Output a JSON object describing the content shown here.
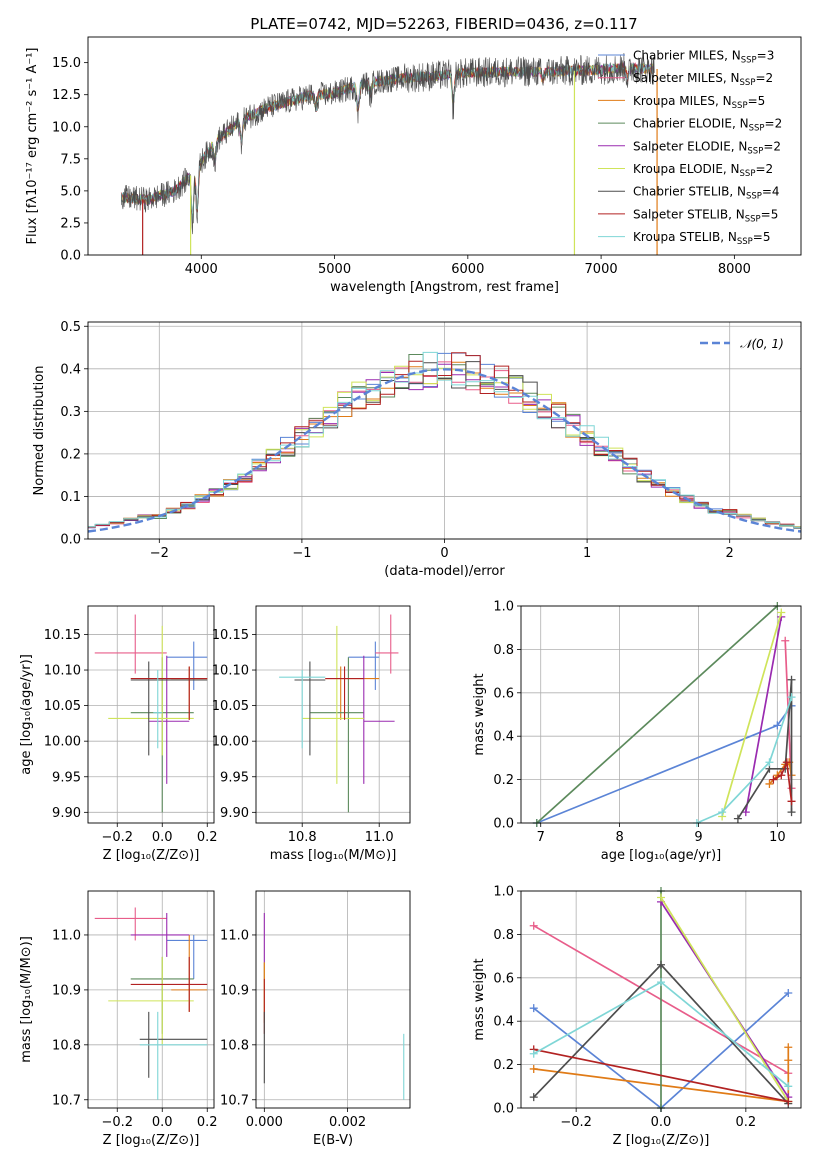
{
  "figure_title": "PLATE=0742, MJD=52263, FIBERID=0436, z=0.117",
  "colors": {
    "chabrier_miles": "#5b84d6",
    "salpeter_miles": "#e85d8a",
    "kroupa_miles": "#e07b17",
    "chabrier_elodie": "#5c8a5c",
    "salpeter_elodie": "#9a2bb0",
    "kroupa_elodie": "#cfe45a",
    "chabrier_stelib": "#4d4d4d",
    "salpeter_stelib": "#b22222",
    "kroupa_stelib": "#7fd6d6"
  },
  "chart_data": [
    {
      "id": "spectrum",
      "type": "line",
      "xlabel": "wavelength [Angstrom, rest frame]",
      "ylabel": "Flux [fλ10⁻¹⁷ erg cm⁻² s⁻¹ A⁻¹]",
      "xlim": [
        3150,
        8500
      ],
      "ylim": [
        0,
        17
      ],
      "xticks": [
        "4000",
        "5000",
        "6000",
        "7000",
        "8000"
      ],
      "xtick_values": [
        4000,
        5000,
        6000,
        7000,
        8000
      ],
      "yticks": [
        "0.0",
        "2.5",
        "5.0",
        "7.5",
        "10.0",
        "12.5",
        "15.0"
      ],
      "ytick_values": [
        0,
        2.5,
        5,
        7.5,
        10,
        12.5,
        15
      ],
      "continuum": {
        "x": [
          3400,
          3600,
          3800,
          3950,
          4100,
          4300,
          4500,
          4800,
          5000,
          5200,
          5500,
          5800,
          6000,
          6300,
          6600,
          6900,
          7200,
          7400
        ],
        "y": [
          4.5,
          4.3,
          5.0,
          6.5,
          8.8,
          10.5,
          11.5,
          12.4,
          12.6,
          13.3,
          13.8,
          14.0,
          14.2,
          14.3,
          14.3,
          14.4,
          14.6,
          14.5
        ]
      },
      "legend_position": "right",
      "series": [
        {
          "name": "Chabrier MILES, N",
          "sub": "SSP",
          "suffix": "=3",
          "color_key": "chabrier_miles"
        },
        {
          "name": "Salpeter MILES, N",
          "sub": "SSP",
          "suffix": "=2",
          "color_key": "salpeter_miles"
        },
        {
          "name": "Kroupa MILES, N",
          "sub": "SSP",
          "suffix": "=5",
          "color_key": "kroupa_miles"
        },
        {
          "name": "Chabrier ELODIE, N",
          "sub": "SSP",
          "suffix": "=2",
          "color_key": "chabrier_elodie"
        },
        {
          "name": "Salpeter ELODIE, N",
          "sub": "SSP",
          "suffix": "=2",
          "color_key": "salpeter_elodie"
        },
        {
          "name": "Kroupa ELODIE, N",
          "sub": "SSP",
          "suffix": "=2",
          "color_key": "kroupa_elodie"
        },
        {
          "name": "Chabrier STELIB, N",
          "sub": "SSP",
          "suffix": "=4",
          "color_key": "chabrier_stelib"
        },
        {
          "name": "Salpeter STELIB, N",
          "sub": "SSP",
          "suffix": "=5",
          "color_key": "salpeter_stelib"
        },
        {
          "name": "Kroupa STELIB, N",
          "sub": "SSP",
          "suffix": "=5",
          "color_key": "kroupa_stelib"
        }
      ]
    },
    {
      "id": "residuals",
      "type": "histogram",
      "xlabel": "(data-model)/error",
      "ylabel": "Normed distribution",
      "xlim": [
        -2.5,
        2.5
      ],
      "ylim": [
        0,
        0.51
      ],
      "xticks": [
        "−2",
        "−1",
        "0",
        "1",
        "2"
      ],
      "xtick_values": [
        -2,
        -1,
        0,
        1,
        2
      ],
      "yticks": [
        "0.0",
        "0.1",
        "0.2",
        "0.3",
        "0.4",
        "0.5"
      ],
      "ytick_values": [
        0,
        0.1,
        0.2,
        0.3,
        0.4,
        0.5
      ],
      "grid": true,
      "bin_width": 0.1,
      "legend": {
        "label": "𝒩(0, 1)",
        "color": "#5b84d6",
        "style": "dashed",
        "position": "top-right"
      }
    },
    {
      "id": "age_vs_Z",
      "type": "errorbar",
      "xlabel": "Z [log₁₀(Z/Z⊙)]",
      "ylabel": "age  [log₁₀(age/yr)]",
      "xlim": [
        -0.33,
        0.23
      ],
      "ylim": [
        9.885,
        10.19
      ],
      "xticks": [
        "−0.2",
        "0.0",
        "0.2"
      ],
      "xtick_values": [
        -0.2,
        0,
        0.2
      ],
      "yticks": [
        "9.90",
        "9.95",
        "10.00",
        "10.05",
        "10.10",
        "10.15"
      ],
      "ytick_values": [
        9.9,
        9.95,
        10.0,
        10.05,
        10.1,
        10.15
      ],
      "grid": true,
      "points": [
        {
          "color_key": "chabrier_miles",
          "x": 0.14,
          "y": 10.118,
          "x0": 0.02,
          "x1": 0.2,
          "y0": 10.072,
          "y1": 10.14
        },
        {
          "color_key": "salpeter_miles",
          "x": -0.12,
          "y": 10.124,
          "x0": -0.3,
          "x1": 0.02,
          "y0": 10.095,
          "y1": 10.178
        },
        {
          "color_key": "kroupa_miles",
          "x": 0.12,
          "y": 10.088,
          "x0": 0.04,
          "x1": 0.2,
          "y0": 10.03,
          "y1": 10.105
        },
        {
          "color_key": "chabrier_elodie",
          "x": 0.0,
          "y": 10.04,
          "x0": -0.14,
          "x1": 0.14,
          "y0": 9.9,
          "y1": 10.118
        },
        {
          "color_key": "salpeter_elodie",
          "x": 0.02,
          "y": 10.028,
          "x0": -0.06,
          "x1": 0.12,
          "y0": 9.94,
          "y1": 10.12
        },
        {
          "color_key": "kroupa_elodie",
          "x": 0.0,
          "y": 10.032,
          "x0": -0.24,
          "x1": 0.14,
          "y0": 9.98,
          "y1": 10.162
        },
        {
          "color_key": "chabrier_stelib",
          "x": -0.06,
          "y": 10.086,
          "x0": -0.14,
          "x1": 0.2,
          "y0": 9.98,
          "y1": 10.112
        },
        {
          "color_key": "salpeter_stelib",
          "x": 0.12,
          "y": 10.088,
          "x0": -0.14,
          "x1": 0.2,
          "y0": 10.03,
          "y1": 10.105
        },
        {
          "color_key": "kroupa_stelib",
          "x": -0.02,
          "y": 10.04,
          "x0": -0.04,
          "x1": 0.0,
          "y0": 9.99,
          "y1": 10.1
        }
      ]
    },
    {
      "id": "age_vs_mass",
      "type": "errorbar",
      "xlabel": "mass [log₁₀(M/M⊙)]",
      "ylabel": "",
      "xlim": [
        10.68,
        11.08
      ],
      "ylim": [
        9.885,
        10.19
      ],
      "xticks": [
        "10.8",
        "11.0"
      ],
      "xtick_values": [
        10.8,
        11.0
      ],
      "yticks": [
        "9.90",
        "9.95",
        "10.00",
        "10.05",
        "10.10",
        "10.15"
      ],
      "ytick_values": [
        9.9,
        9.95,
        10.0,
        10.05,
        10.1,
        10.15
      ],
      "grid": true,
      "points": [
        {
          "color_key": "chabrier_miles",
          "x": 10.99,
          "y": 10.118,
          "x0": 10.92,
          "x1": 11.0,
          "y0": 10.072,
          "y1": 10.14
        },
        {
          "color_key": "salpeter_miles",
          "x": 11.03,
          "y": 10.124,
          "x0": 10.99,
          "x1": 11.05,
          "y0": 10.095,
          "y1": 10.178
        },
        {
          "color_key": "kroupa_miles",
          "x": 10.9,
          "y": 10.088,
          "x0": 10.86,
          "x1": 11.0,
          "y0": 10.03,
          "y1": 10.105
        },
        {
          "color_key": "chabrier_elodie",
          "x": 10.92,
          "y": 10.04,
          "x0": 10.82,
          "x1": 10.96,
          "y0": 9.9,
          "y1": 10.118
        },
        {
          "color_key": "salpeter_elodie",
          "x": 10.96,
          "y": 10.028,
          "x0": 10.96,
          "x1": 11.04,
          "y0": 9.94,
          "y1": 10.12
        },
        {
          "color_key": "kroupa_elodie",
          "x": 10.89,
          "y": 10.032,
          "x0": 10.8,
          "x1": 10.96,
          "y0": 9.94,
          "y1": 10.162
        },
        {
          "color_key": "chabrier_stelib",
          "x": 10.82,
          "y": 10.086,
          "x0": 10.78,
          "x1": 10.86,
          "y0": 9.98,
          "y1": 10.112
        },
        {
          "color_key": "salpeter_stelib",
          "x": 10.91,
          "y": 10.088,
          "x0": 10.86,
          "x1": 10.96,
          "y0": 10.03,
          "y1": 10.105
        },
        {
          "color_key": "kroupa_stelib",
          "x": 10.8,
          "y": 10.09,
          "x0": 10.74,
          "x1": 10.86,
          "y0": 9.99,
          "y1": 10.1
        }
      ]
    },
    {
      "id": "weight_vs_age",
      "type": "line",
      "xlabel": "age  [log₁₀(age/yr)]",
      "ylabel": "mass weight",
      "xlim": [
        6.75,
        10.3
      ],
      "ylim": [
        0,
        1
      ],
      "xticks": [
        "7",
        "8",
        "9",
        "10"
      ],
      "xtick_values": [
        7,
        8,
        9,
        10
      ],
      "yticks": [
        "0.0",
        "0.2",
        "0.4",
        "0.6",
        "0.8",
        "1.0"
      ],
      "ytick_values": [
        0,
        0.2,
        0.4,
        0.6,
        0.8,
        1.0
      ],
      "grid": true,
      "series": [
        {
          "color_key": "chabrier_miles",
          "x": [
            6.95,
            10.0,
            10.18
          ],
          "y": [
            0.0,
            0.45,
            0.54
          ]
        },
        {
          "color_key": "salpeter_miles",
          "x": [
            10.1,
            10.18
          ],
          "y": [
            0.84,
            0.16
          ]
        },
        {
          "color_key": "kroupa_miles",
          "x": [
            9.9,
            10.0,
            10.1,
            10.15,
            10.18
          ],
          "y": [
            0.18,
            0.22,
            0.27,
            0.28,
            0.22
          ]
        },
        {
          "color_key": "chabrier_elodie",
          "x": [
            6.95,
            10.0
          ],
          "y": [
            0.0,
            1.0
          ]
        },
        {
          "color_key": "salpeter_elodie",
          "x": [
            9.6,
            10.05
          ],
          "y": [
            0.05,
            0.95
          ]
        },
        {
          "color_key": "kroupa_elodie",
          "x": [
            9.3,
            10.05
          ],
          "y": [
            0.03,
            0.97
          ]
        },
        {
          "color_key": "chabrier_stelib",
          "x": [
            9.5,
            9.9,
            10.1,
            10.18,
            10.18
          ],
          "y": [
            0.02,
            0.25,
            0.25,
            0.66,
            0.05
          ]
        },
        {
          "color_key": "salpeter_stelib",
          "x": [
            9.95,
            10.05,
            10.12,
            10.18
          ],
          "y": [
            0.2,
            0.22,
            0.28,
            0.1
          ]
        },
        {
          "color_key": "kroupa_stelib",
          "x": [
            8.98,
            9.3,
            9.9,
            10.18
          ],
          "y": [
            0.0,
            0.05,
            0.28,
            0.58
          ]
        }
      ]
    },
    {
      "id": "mass_vs_Z",
      "type": "errorbar",
      "xlabel": "Z [log₁₀(Z/Z⊙)]",
      "ylabel": "mass [log₁₀(M/M⊙)]",
      "xlim": [
        -0.33,
        0.23
      ],
      "ylim": [
        10.685,
        11.08
      ],
      "xticks": [
        "−0.2",
        "0.0",
        "0.2"
      ],
      "xtick_values": [
        -0.2,
        0,
        0.2
      ],
      "yticks": [
        "10.7",
        "10.8",
        "10.9",
        "11.0"
      ],
      "ytick_values": [
        10.7,
        10.8,
        10.9,
        11.0
      ],
      "grid": true,
      "points": [
        {
          "color_key": "chabrier_miles",
          "x": 0.14,
          "y": 10.99,
          "x0": 0.02,
          "x1": 0.2,
          "y0": 10.92,
          "y1": 11.0
        },
        {
          "color_key": "salpeter_miles",
          "x": -0.12,
          "y": 11.03,
          "x0": -0.3,
          "x1": 0.02,
          "y0": 10.99,
          "y1": 11.05
        },
        {
          "color_key": "kroupa_miles",
          "x": 0.12,
          "y": 10.9,
          "x0": 0.04,
          "x1": 0.2,
          "y0": 10.86,
          "y1": 11.0
        },
        {
          "color_key": "chabrier_elodie",
          "x": 0.0,
          "y": 10.92,
          "x0": -0.14,
          "x1": 0.14,
          "y0": 10.82,
          "y1": 10.96
        },
        {
          "color_key": "salpeter_elodie",
          "x": 0.02,
          "y": 11.0,
          "x0": -0.14,
          "x1": 0.12,
          "y0": 10.96,
          "y1": 11.04
        },
        {
          "color_key": "kroupa_elodie",
          "x": 0.0,
          "y": 10.88,
          "x0": -0.24,
          "x1": 0.14,
          "y0": 10.8,
          "y1": 10.96
        },
        {
          "color_key": "chabrier_stelib",
          "x": -0.06,
          "y": 10.81,
          "x0": -0.1,
          "x1": 0.2,
          "y0": 10.74,
          "y1": 10.86
        },
        {
          "color_key": "salpeter_stelib",
          "x": 0.12,
          "y": 10.91,
          "x0": -0.14,
          "x1": 0.2,
          "y0": 10.86,
          "y1": 10.96
        },
        {
          "color_key": "kroupa_stelib",
          "x": -0.02,
          "y": 10.8,
          "x0": -0.1,
          "x1": 0.2,
          "y0": 10.7,
          "y1": 10.86
        }
      ]
    },
    {
      "id": "mass_vs_ebv",
      "type": "errorbar",
      "xlabel": "E(B-V)",
      "ylabel": "",
      "xlim": [
        -0.0002,
        0.0035
      ],
      "ylim": [
        10.685,
        11.08
      ],
      "xticks": [
        "0.000",
        "0.002"
      ],
      "xtick_values": [
        0,
        0.002
      ],
      "yticks": [
        "10.7",
        "10.8",
        "10.9",
        "11.0"
      ],
      "ytick_values": [
        10.7,
        10.8,
        10.9,
        11.0
      ],
      "grid": true,
      "points": [
        {
          "color_key": "salpeter_elodie",
          "x": 0.0,
          "y": 11.0,
          "x0": 0.0,
          "x1": 0.0,
          "y0": 10.92,
          "y1": 11.04
        },
        {
          "color_key": "kroupa_elodie",
          "x": 0.0,
          "y": 10.92,
          "x0": 0.0,
          "x1": 0.0,
          "y0": 10.86,
          "y1": 10.95
        },
        {
          "color_key": "kroupa_miles",
          "x": 0.0,
          "y": 10.9,
          "x0": 0.0,
          "x1": 0.0,
          "y0": 10.84,
          "y1": 10.95
        },
        {
          "color_key": "salpeter_stelib",
          "x": 0.0,
          "y": 10.88,
          "x0": 0.0,
          "x1": 0.0,
          "y0": 10.82,
          "y1": 10.92
        },
        {
          "color_key": "chabrier_stelib",
          "x": 0.0,
          "y": 10.8,
          "x0": 0.0,
          "x1": 0.0,
          "y0": 10.73,
          "y1": 10.86
        },
        {
          "color_key": "kroupa_stelib",
          "x": 0.00335,
          "y": 10.77,
          "x0": 0.00335,
          "x1": 0.00335,
          "y0": 10.7,
          "y1": 10.82
        }
      ]
    },
    {
      "id": "weight_vs_Z",
      "type": "line",
      "xlabel": "Z [log₁₀(Z/Z⊙)]",
      "ylabel": "mass weight",
      "xlim": [
        -0.33,
        0.33
      ],
      "ylim": [
        0,
        1
      ],
      "xticks": [
        "−0.2",
        "0.0",
        "0.2"
      ],
      "xtick_values": [
        -0.2,
        0,
        0.2
      ],
      "yticks": [
        "0.0",
        "0.2",
        "0.4",
        "0.6",
        "0.8",
        "1.0"
      ],
      "ytick_values": [
        0,
        0.2,
        0.4,
        0.6,
        0.8,
        1.0
      ],
      "grid": true,
      "series": [
        {
          "color_key": "chabrier_miles",
          "x": [
            -0.3,
            0.0,
            0.3
          ],
          "y": [
            0.46,
            0.0,
            0.53
          ]
        },
        {
          "color_key": "salpeter_miles",
          "x": [
            -0.3,
            0.3
          ],
          "y": [
            0.84,
            0.16
          ]
        },
        {
          "color_key": "kroupa_miles",
          "x": [
            -0.3,
            0.3,
            0.3,
            0.3
          ],
          "y": [
            0.18,
            0.03,
            0.22,
            0.28
          ]
        },
        {
          "color_key": "chabrier_elodie",
          "x": [
            0.0,
            0.0
          ],
          "y": [
            0.0,
            1.0
          ]
        },
        {
          "color_key": "salpeter_elodie",
          "x": [
            0.0,
            0.3
          ],
          "y": [
            0.95,
            0.05
          ]
        },
        {
          "color_key": "kroupa_elodie",
          "x": [
            0.0,
            0.3
          ],
          "y": [
            0.97,
            0.03
          ]
        },
        {
          "color_key": "chabrier_stelib",
          "x": [
            -0.3,
            0.0,
            0.3
          ],
          "y": [
            0.05,
            0.66,
            0.02
          ]
        },
        {
          "color_key": "salpeter_stelib",
          "x": [
            -0.3,
            0.3
          ],
          "y": [
            0.27,
            0.03
          ]
        },
        {
          "color_key": "kroupa_stelib",
          "x": [
            -0.3,
            0.0,
            0.3
          ],
          "y": [
            0.25,
            0.58,
            0.1
          ]
        }
      ]
    }
  ]
}
